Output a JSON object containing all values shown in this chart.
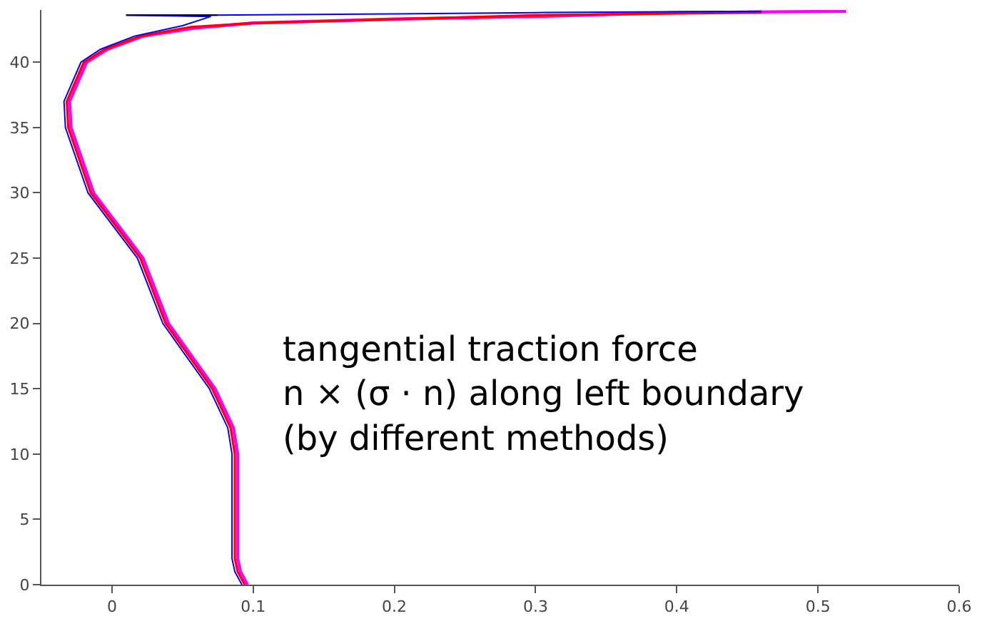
{
  "chart_data": {
    "type": "line",
    "xlim": [
      -0.05,
      0.6
    ],
    "ylim": [
      0,
      44
    ],
    "xticks": [
      0,
      0.1,
      0.2,
      0.3,
      0.4,
      0.5,
      0.6
    ],
    "yticks": [
      0,
      5,
      10,
      15,
      20,
      25,
      30,
      35,
      40
    ],
    "line_style": "solid",
    "marker": "none",
    "annotations": [
      "tangential traction force\nn × (σ · n) along left boundary\n(by different methods)"
    ],
    "series": [
      {
        "color": "#ff00ff",
        "x": [
          0.096,
          0.091,
          0.089,
          0.089,
          0.089,
          0.086,
          0.073,
          0.04,
          0.022,
          -0.013,
          -0.029,
          -0.03,
          -0.018,
          -0.003,
          0.022,
          0.058,
          0.1,
          0.2,
          0.3,
          0.4,
          0.52
        ],
        "values": [
          0,
          1,
          2,
          5,
          10,
          12,
          15,
          20,
          25,
          30,
          35,
          37,
          40,
          41,
          42,
          42.6,
          43.0,
          43.3,
          43.5,
          43.8,
          43.9
        ]
      },
      {
        "color": "#ff0000",
        "x": [
          0.094,
          0.089,
          0.087,
          0.087,
          0.087,
          0.084,
          0.071,
          0.038,
          0.02,
          -0.015,
          -0.031,
          -0.032,
          -0.02,
          -0.005,
          0.02,
          0.056,
          0.1,
          0.2,
          0.3,
          0.46
        ],
        "values": [
          0,
          1,
          2,
          5,
          10,
          12,
          15,
          20,
          25,
          30,
          35,
          37,
          40,
          41,
          42,
          42.7,
          43.0,
          43.3,
          43.6,
          43.8
        ]
      },
      {
        "color": "#0000ff",
        "x": [
          0.092,
          0.087,
          0.085,
          0.085,
          0.085,
          0.082,
          0.069,
          0.036,
          0.018,
          -0.017,
          -0.033,
          -0.034,
          -0.022,
          -0.008,
          0.016,
          0.05,
          0.07,
          0.01,
          0.07,
          0.2,
          0.3,
          0.46
        ],
        "values": [
          0,
          1,
          2,
          5,
          10,
          12,
          15,
          20,
          25,
          30,
          35,
          37,
          40,
          41,
          42,
          42.8,
          43.5,
          43.6,
          43.6,
          43.7,
          43.8,
          43.9
        ]
      },
      {
        "color": "#000000",
        "x": [
          0.01,
          0.06,
          0.075
        ],
        "values": [
          43.6,
          43.6,
          43.6
        ]
      }
    ]
  }
}
